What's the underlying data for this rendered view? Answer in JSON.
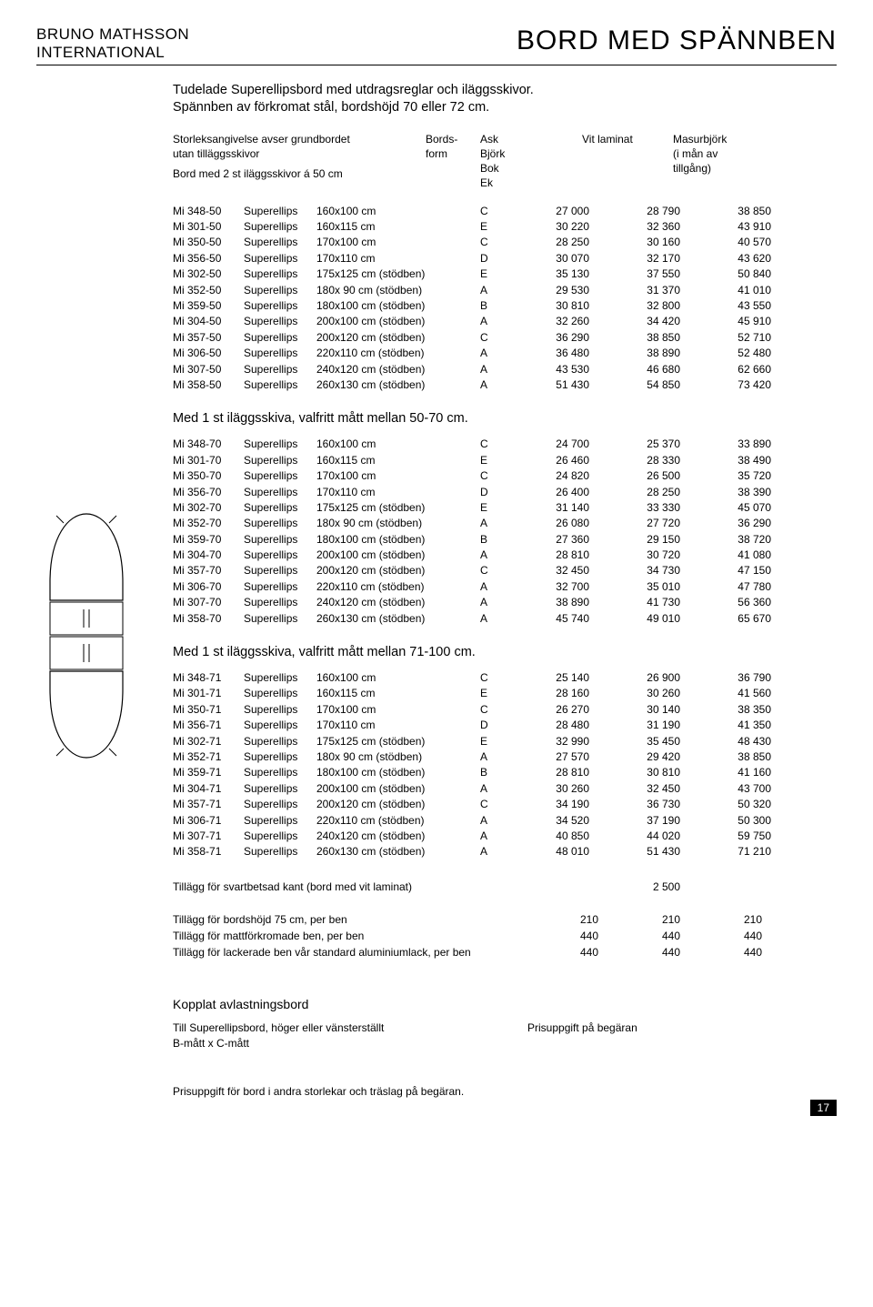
{
  "brand_line1": "BRUNO MATHSSON",
  "brand_line2": "INTERNATIONAL",
  "page_title": "BORD MED SPÄNNBEN",
  "intro_l1": "Tudelade Superellipsbord med utdragsreglar och iläggsskivor.",
  "intro_l2": "Spännben av förkromat stål, bordshöjd 70 eller 72 cm.",
  "subhead_l1": "Storleksangivelse avser grundbordet",
  "subhead_l2": "utan tilläggsskivor",
  "subhead_l3": "Bord med 2 st iläggsskivor á 50 cm",
  "col_form_l1": "Bords-",
  "col_form_l2": "form",
  "col_mat1_l1": "Ask",
  "col_mat1_l2": "Björk",
  "col_mat1_l3": "Bok",
  "col_mat1_l4": "Ek",
  "col_mat2": "Vit laminat",
  "col_mat3_l1": "Masurbjörk",
  "col_mat3_l2": "(i mån av",
  "col_mat3_l3": "tillgång)",
  "shape": "Superellips",
  "table1": [
    [
      "Mi 348-50",
      "160x100 cm",
      "C",
      "27 000",
      "28 790",
      "38 850"
    ],
    [
      "Mi 301-50",
      "160x115 cm",
      "E",
      "30 220",
      "32 360",
      "43 910"
    ],
    [
      "Mi 350-50",
      "170x100 cm",
      "C",
      "28 250",
      "30 160",
      "40 570"
    ],
    [
      "Mi 356-50",
      "170x110 cm",
      "D",
      "30 070",
      "32 170",
      "43 620"
    ],
    [
      "Mi 302-50",
      "175x125 cm  (stödben)",
      "E",
      "35 130",
      "37 550",
      "50 840"
    ],
    [
      "Mi 352-50",
      "180x  90 cm  (stödben)",
      "A",
      "29 530",
      "31 370",
      "41 010"
    ],
    [
      "Mi 359-50",
      "180x100 cm  (stödben)",
      "B",
      "30 810",
      "32 800",
      "43 550"
    ],
    [
      "Mi 304-50",
      "200x100 cm  (stödben)",
      "A",
      "32 260",
      "34 420",
      "45 910"
    ],
    [
      "Mi 357-50",
      "200x120 cm  (stödben)",
      "C",
      "36 290",
      "38 850",
      "52 710"
    ],
    [
      "Mi 306-50",
      "220x110 cm  (stödben)",
      "A",
      "36 480",
      "38 890",
      "52 480"
    ],
    [
      "Mi 307-50",
      "240x120 cm  (stödben)",
      "A",
      "43 530",
      "46 680",
      "62 660"
    ],
    [
      "Mi 358-50",
      "260x130 cm  (stödben)",
      "A",
      "51 430",
      "54 850",
      "73 420"
    ]
  ],
  "sec2_title": "Med 1 st iläggsskiva, valfritt mått mellan 50-70 cm.",
  "table2": [
    [
      "Mi 348-70",
      "160x100 cm",
      "C",
      "24 700",
      "25 370",
      "33 890"
    ],
    [
      "Mi 301-70",
      "160x115 cm",
      "E",
      "26 460",
      "28 330",
      "38 490"
    ],
    [
      "Mi 350-70",
      "170x100 cm",
      "C",
      "24 820",
      "26 500",
      "35 720"
    ],
    [
      "Mi 356-70",
      "170x110 cm",
      "D",
      "26 400",
      "28 250",
      "38 390"
    ],
    [
      "Mi 302-70",
      "175x125 cm (stödben)",
      "E",
      "31 140",
      "33 330",
      "45 070"
    ],
    [
      "Mi 352-70",
      "180x  90 cm (stödben)",
      "A",
      "26 080",
      "27 720",
      "36 290"
    ],
    [
      "Mi 359-70",
      "180x100 cm (stödben)",
      "B",
      "27 360",
      "29 150",
      "38 720"
    ],
    [
      "Mi 304-70",
      "200x100 cm (stödben)",
      "A",
      "28 810",
      "30 720",
      "41 080"
    ],
    [
      "Mi 357-70",
      "200x120 cm (stödben)",
      "C",
      "32 450",
      "34 730",
      "47 150"
    ],
    [
      "Mi 306-70",
      "220x110 cm (stödben)",
      "A",
      "32 700",
      "35 010",
      "47 780"
    ],
    [
      "Mi 307-70",
      "240x120 cm (stödben)",
      "A",
      "38 890",
      "41 730",
      "56 360"
    ],
    [
      "Mi 358-70",
      "260x130 cm (stödben)",
      "A",
      "45 740",
      "49 010",
      "65 670"
    ]
  ],
  "sec3_title": "Med 1 st iläggsskiva, valfritt mått mellan 71-100 cm.",
  "table3": [
    [
      "Mi 348-71",
      "160x100 cm",
      "C",
      "25 140",
      "26 900",
      "36 790"
    ],
    [
      "Mi 301-71",
      "160x115 cm",
      "E",
      "28 160",
      "30 260",
      "41 560"
    ],
    [
      "Mi 350-71",
      "170x100 cm",
      "C",
      "26 270",
      "30 140",
      "38 350"
    ],
    [
      "Mi 356-71",
      "170x110 cm",
      "D",
      "28 480",
      "31 190",
      "41 350"
    ],
    [
      "Mi 302-71",
      "175x125 cm (stödben)",
      "E",
      "32 990",
      "35 450",
      "48 430"
    ],
    [
      "Mi 352-71",
      "180x  90 cm (stödben)",
      "A",
      "27 570",
      "29 420",
      "38 850"
    ],
    [
      "Mi 359-71",
      "180x100 cm (stödben)",
      "B",
      "28 810",
      "30 810",
      "41 160"
    ],
    [
      "Mi 304-71",
      "200x100 cm (stödben)",
      "A",
      "30 260",
      "32 450",
      "43 700"
    ],
    [
      "Mi 357-71",
      "200x120 cm (stödben)",
      "C",
      "34 190",
      "36 730",
      "50 320"
    ],
    [
      "Mi 306-71",
      "220x110 cm (stödben)",
      "A",
      "34 520",
      "37 190",
      "50 300"
    ],
    [
      "Mi 307-71",
      "240x120 cm (stödben)",
      "A",
      "40 850",
      "44 020",
      "59 750"
    ],
    [
      "Mi 358-71",
      "260x130 cm (stödben)",
      "A",
      "48 010",
      "51 430",
      "71 210"
    ]
  ],
  "addons": [
    [
      "Tillägg för svartbetsad kant (bord med vit laminat)",
      "",
      "2 500",
      ""
    ],
    [
      "",
      "",
      "",
      ""
    ],
    [
      "Tillägg för bordshöjd  75 cm, per ben",
      "210",
      "210",
      "210"
    ],
    [
      "Tillägg för mattförkromade ben, per ben",
      "440",
      "440",
      "440"
    ],
    [
      "Tillägg för lackerade ben vår standard aluminiumlack, per ben",
      "440",
      "440",
      "440"
    ]
  ],
  "coupled_title": "Kopplat avlastningsbord",
  "coupled_l1_left": "Till Superellipsbord, höger eller vänsterställt",
  "coupled_l1_right": "Prisuppgift på begäran",
  "coupled_l2": "B-mått x C-mått",
  "footer_note": "Prisuppgift för bord i andra storlekar och träslag på begäran.",
  "page_number": "17",
  "colors": {
    "text": "#000000",
    "bg": "#ffffff"
  }
}
